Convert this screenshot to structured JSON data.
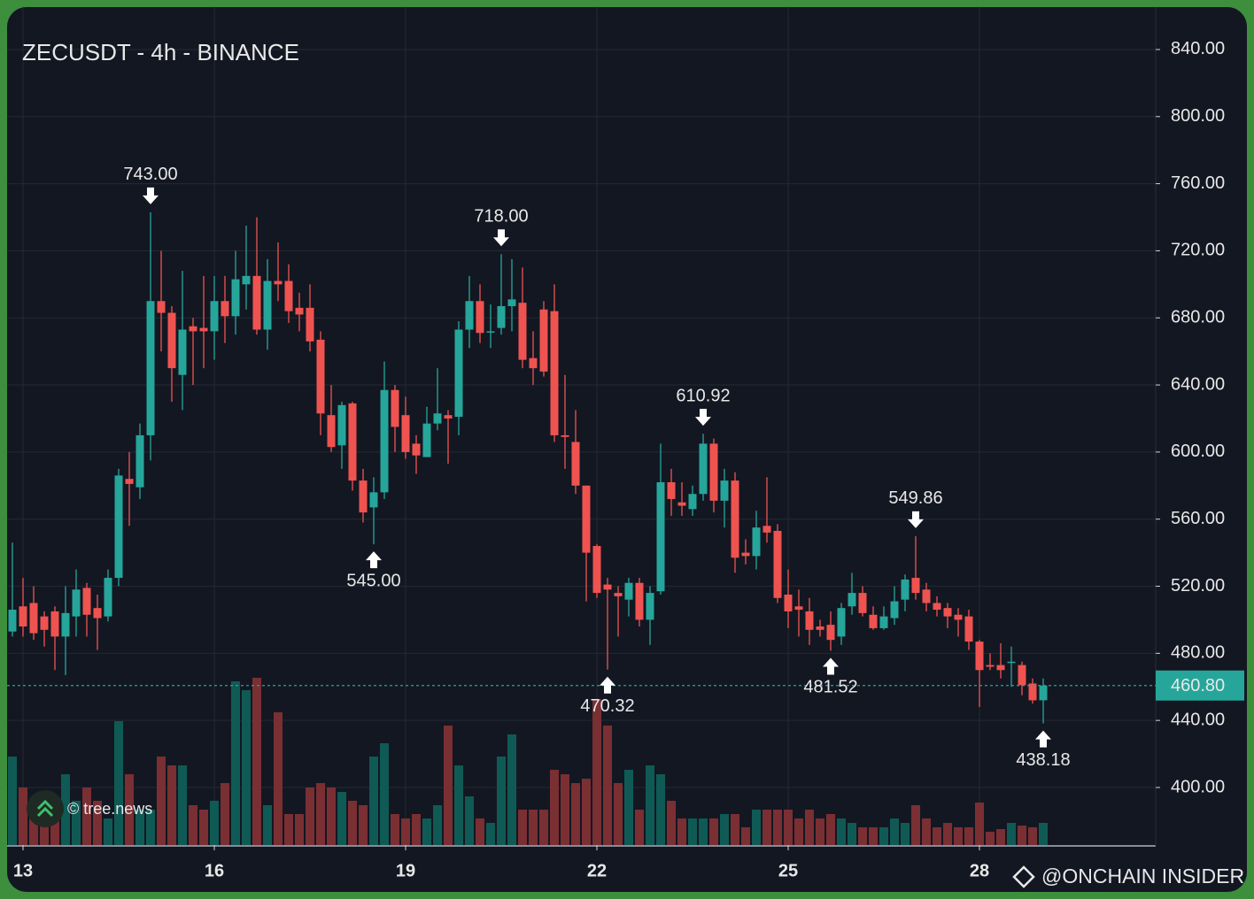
{
  "chart_data": {
    "type": "candlestick",
    "title": "ZECUSDT - 4h - BINANCE",
    "categories": [
      null,
      "13",
      null,
      null,
      null,
      null,
      null,
      null,
      null,
      null,
      null,
      null,
      null,
      null,
      null,
      null,
      null,
      null,
      null,
      "16",
      null,
      null,
      null,
      null,
      null,
      null,
      null,
      null,
      null,
      null,
      null,
      null,
      null,
      null,
      null,
      null,
      null,
      "19",
      null,
      null,
      null,
      null,
      null,
      null,
      null,
      null,
      null,
      null,
      null,
      null,
      null,
      null,
      null,
      null,
      null,
      "22",
      null,
      null,
      null,
      null,
      null,
      null,
      null,
      null,
      null,
      null,
      null,
      null,
      null,
      null,
      null,
      null,
      null,
      "25",
      null,
      null,
      null,
      null,
      null,
      null,
      null,
      null,
      null,
      null,
      null,
      null,
      null,
      null,
      null,
      null,
      null,
      "28",
      null,
      null,
      null,
      null,
      null,
      null
    ],
    "open": [
      493,
      508,
      510,
      502,
      505,
      490,
      502,
      519,
      507,
      502,
      525,
      584,
      579,
      610,
      690,
      683,
      646,
      675,
      674,
      672,
      690,
      681,
      700,
      705,
      673,
      702,
      702,
      686,
      686,
      667,
      622,
      604,
      629,
      583,
      567,
      576,
      637,
      622,
      605,
      597,
      617,
      622,
      621,
      673,
      690,
      672,
      674,
      687,
      689,
      656,
      685,
      684,
      610,
      606,
      580,
      544,
      521,
      516,
      512,
      522,
      500,
      517,
      582,
      570,
      566,
      575,
      605,
      571,
      583,
      540,
      538,
      556,
      553,
      515,
      508,
      505,
      496,
      497,
      490,
      508,
      516,
      503,
      495,
      501,
      512,
      525,
      518,
      510,
      507,
      503,
      502,
      487,
      473,
      473,
      475,
      473,
      462,
      452
    ],
    "high": [
      546,
      525,
      520,
      505,
      508,
      520,
      530,
      522,
      515,
      530,
      590,
      600,
      617,
      743,
      720,
      687,
      708,
      680,
      705,
      705,
      705,
      720,
      735,
      740,
      715,
      725,
      712,
      695,
      700,
      672,
      640,
      630,
      630,
      590,
      585,
      654,
      640,
      633,
      610,
      627,
      650,
      625,
      678,
      705,
      700,
      688,
      718,
      715,
      710,
      672,
      690,
      700,
      646,
      625,
      580,
      545,
      525,
      520,
      525,
      525,
      520,
      605,
      590,
      582,
      580,
      610.92,
      608,
      590,
      588,
      548,
      565,
      585,
      557,
      530,
      518,
      513,
      500,
      505,
      510,
      528,
      520,
      508,
      508,
      520,
      527,
      549.86,
      522,
      514,
      510,
      507,
      506,
      488,
      480,
      486,
      484,
      475,
      465,
      465
    ],
    "low": [
      490,
      490,
      488,
      484,
      470,
      467,
      490,
      490,
      482,
      499,
      520,
      556,
      572,
      595,
      660,
      630,
      625,
      640,
      650,
      655,
      665,
      670,
      685,
      670,
      661,
      690,
      677,
      672,
      660,
      610,
      600,
      590,
      577,
      558,
      545,
      572,
      600,
      596,
      587,
      598,
      613,
      593,
      610,
      662,
      665,
      662,
      670,
      672,
      650,
      640,
      645,
      606,
      590,
      575,
      511,
      513,
      470.32,
      490,
      502,
      496,
      485,
      515,
      562,
      562,
      562,
      571,
      564,
      555,
      528,
      533,
      530,
      546,
      510,
      495,
      490,
      485,
      490,
      481.52,
      485,
      503,
      502,
      494,
      494,
      497,
      505,
      512,
      505,
      502,
      495,
      490,
      482,
      448,
      470,
      465,
      460,
      455,
      450,
      438.18
    ],
    "close": [
      506,
      496,
      492,
      494,
      490,
      504,
      518,
      503,
      501,
      525,
      586,
      581,
      610,
      690,
      683,
      650,
      673,
      672,
      672,
      690,
      681,
      703,
      705,
      673,
      702,
      700,
      684,
      682,
      666,
      623,
      603,
      628,
      583,
      564,
      576,
      637,
      615,
      600,
      598,
      617,
      623,
      620,
      673,
      690,
      671,
      672,
      687,
      691,
      655,
      650,
      648,
      610,
      609,
      580,
      540,
      516,
      518,
      514,
      522,
      500,
      516,
      582,
      572,
      568,
      575,
      605,
      571,
      583,
      537,
      538,
      555,
      552,
      513,
      505,
      506,
      494,
      494,
      488,
      507,
      516,
      504,
      495,
      502,
      511,
      524,
      516,
      510,
      506,
      502,
      500,
      487,
      470,
      472,
      470,
      475,
      461,
      452,
      460.8
    ],
    "volume": [
      100,
      65,
      40,
      40,
      30,
      80,
      50,
      65,
      50,
      30,
      140,
      80,
      40,
      40,
      100,
      90,
      90,
      45,
      40,
      50,
      70,
      185,
      175,
      189,
      45,
      150,
      35,
      35,
      65,
      70,
      65,
      60,
      50,
      45,
      100,
      115,
      35,
      30,
      35,
      30,
      45,
      135,
      90,
      55,
      30,
      25,
      100,
      125,
      40,
      40,
      40,
      85,
      80,
      70,
      75,
      165,
      135,
      70,
      85,
      40,
      90,
      80,
      50,
      30,
      30,
      30,
      30,
      35,
      35,
      20,
      40,
      40,
      40,
      40,
      30,
      40,
      30,
      35,
      30,
      25,
      20,
      20,
      20,
      30,
      25,
      45,
      30,
      20,
      25,
      20,
      20,
      48,
      15,
      18,
      25,
      22,
      20,
      25
    ],
    "volume_ylim": [
      0,
      400
    ],
    "ylim": [
      365.7,
      865.3
    ],
    "yticks": [
      {
        "value": 400,
        "label": "400.00"
      },
      {
        "value": 440,
        "label": "440.00"
      },
      {
        "value": 480,
        "label": "480.00"
      },
      {
        "value": 520,
        "label": "520.00"
      },
      {
        "value": 560,
        "label": "560.00"
      },
      {
        "value": 600,
        "label": "600.00"
      },
      {
        "value": 640,
        "label": "640.00"
      },
      {
        "value": 680,
        "label": "680.00"
      },
      {
        "value": 720,
        "label": "720.00"
      },
      {
        "value": 760,
        "label": "760.00"
      },
      {
        "value": 800,
        "label": "800.00"
      },
      {
        "value": 840,
        "label": "840.00"
      }
    ],
    "last_price": {
      "value": 460.8,
      "label": "460.80"
    },
    "annotations": [
      {
        "kind": "high",
        "value": 743,
        "label": "743.00"
      },
      {
        "kind": "low",
        "value": 545,
        "label": "545.00"
      },
      {
        "kind": "high",
        "value": 718,
        "label": "718.00"
      },
      {
        "kind": "low",
        "value": 470.32,
        "label": "470.32"
      },
      {
        "kind": "high",
        "value": 610.92,
        "label": "610.92"
      },
      {
        "kind": "low",
        "value": 481.52,
        "label": "481.52"
      },
      {
        "kind": "high",
        "value": 549.86,
        "label": "549.86"
      },
      {
        "kind": "low",
        "value": 438.18,
        "label": "438.18"
      }
    ],
    "up_color": "#26a69a",
    "down_color": "#ef5350",
    "volume_up_color": "#0f5a55",
    "volume_down_color": "#7a2f33",
    "grid": true,
    "watermark": "© tree.news",
    "credit": "@ONCHAIN INSIDER"
  }
}
